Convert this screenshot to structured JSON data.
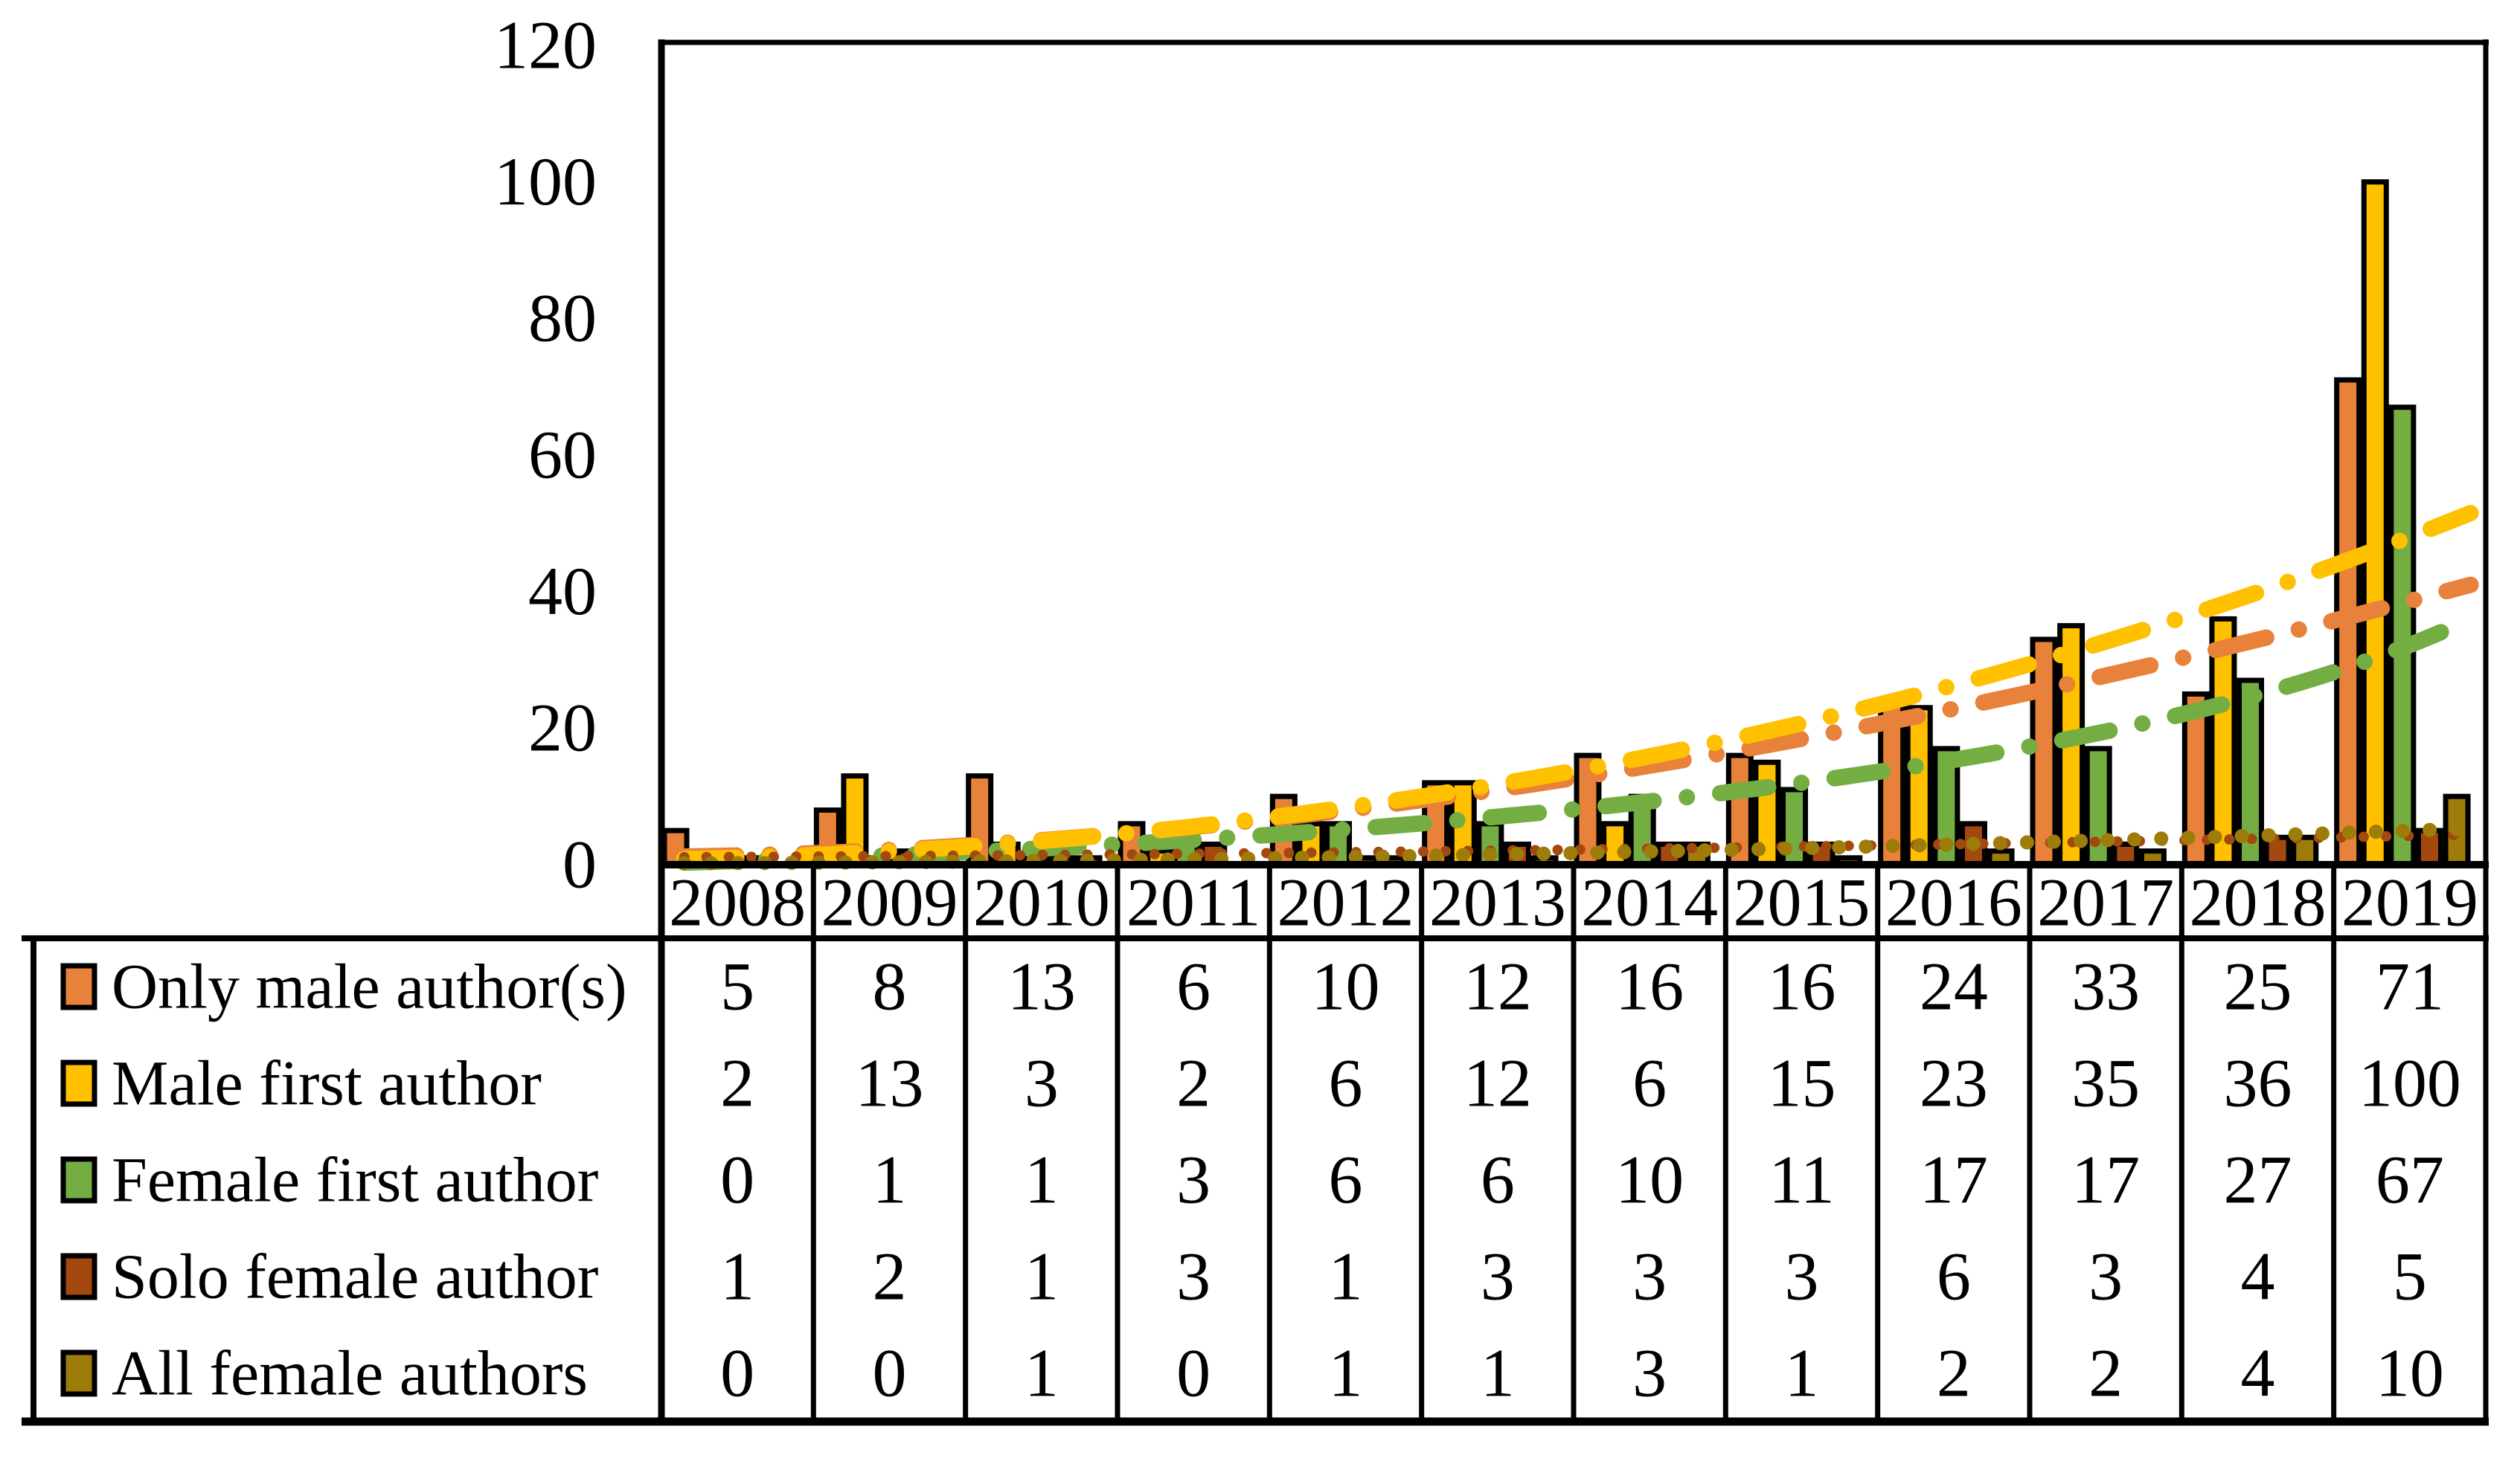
{
  "page": {
    "background": "#FFFFFF"
  },
  "chart_data": {
    "type": "bar",
    "title": "",
    "xlabel": "",
    "ylabel": "",
    "ylim": [
      0,
      120
    ],
    "yticks": [
      0,
      20,
      40,
      60,
      80,
      100,
      120
    ],
    "grid": false,
    "legend_position": "table-left-column",
    "categories": [
      "2008",
      "2009",
      "2010",
      "2011",
      "2012",
      "2013",
      "2014",
      "2015",
      "2016",
      "2017",
      "2018",
      "2019"
    ],
    "series": [
      {
        "name": "Only male author(s)",
        "color": "#E8813A",
        "values": [
          5,
          8,
          13,
          6,
          10,
          12,
          16,
          16,
          24,
          33,
          25,
          71
        ],
        "trendline": {
          "style": "dash-dot",
          "width": 22,
          "dash": "70 45 0.1 45",
          "points": [
            [
              -0.35,
              1.2
            ],
            [
              5.3,
              12
            ],
            [
              11.4,
              41
            ]
          ]
        }
      },
      {
        "name": "Male first author",
        "color": "#FFC000",
        "values": [
          2,
          13,
          3,
          2,
          6,
          12,
          6,
          15,
          23,
          35,
          36,
          100
        ],
        "trendline": {
          "style": "dash-dot",
          "width": 22,
          "dash": "70 45 0.1 45",
          "points": [
            [
              -0.35,
              0.8
            ],
            [
              5.8,
              15
            ],
            [
              11.4,
              51.5
            ]
          ]
        }
      },
      {
        "name": "Female first author",
        "color": "#74AE43",
        "values": [
          0,
          1,
          1,
          3,
          6,
          6,
          10,
          11,
          17,
          17,
          27,
          67
        ],
        "trendline": {
          "style": "dash-dot",
          "width": 22,
          "dash": "65 45 0.1 45",
          "points": [
            [
              -0.35,
              0.3
            ],
            [
              7.0,
              12
            ],
            [
              11.35,
              35.5
            ]
          ]
        }
      },
      {
        "name": "Solo female author",
        "color": "#A3490F",
        "values": [
          1,
          2,
          1,
          3,
          1,
          3,
          3,
          3,
          6,
          3,
          4,
          5
        ],
        "trendline": {
          "style": "dot",
          "width": 14,
          "dash": "0.1 30",
          "points": [
            [
              -0.35,
              1.1
            ],
            [
              5.5,
              2.2
            ],
            [
              11.4,
              4.4
            ]
          ]
        }
      },
      {
        "name": "All female authors",
        "color": "#9D7C0A",
        "values": [
          0,
          0,
          1,
          0,
          1,
          1,
          3,
          1,
          2,
          2,
          4,
          10
        ],
        "trendline": {
          "style": "dot",
          "width": 19,
          "dash": "0.1 36",
          "points": [
            [
              -0.35,
              0.2
            ],
            [
              5.5,
              1.7
            ],
            [
              11.4,
              5.3
            ]
          ]
        }
      }
    ]
  }
}
